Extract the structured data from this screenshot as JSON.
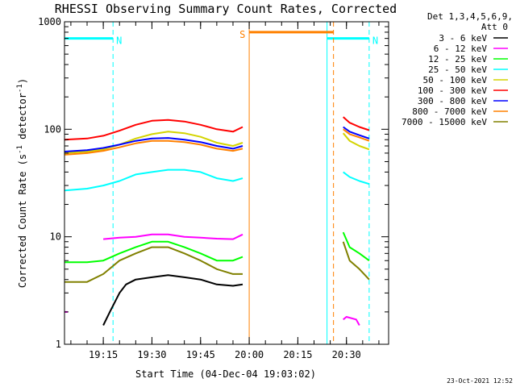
{
  "chart_data": {
    "type": "line",
    "title": "RHESSI Observing Summary Count Rates, Corrected",
    "xlabel": "Start Time (04-Dec-04 19:03:02)",
    "ylabel": "Corrected Count Rate (s",
    "ylabel_sup1": "-1",
    "ylabel_mid": " detector",
    "ylabel_sup2": "-1",
    "ylabel_end": ")",
    "yscale": "log",
    "ylim": [
      1,
      1000
    ],
    "xlim": [
      "19:03:02",
      "20:43:00"
    ],
    "x_ticks": [
      "19:15",
      "19:30",
      "19:45",
      "20:00",
      "20:15",
      "20:30"
    ],
    "y_ticks": [
      "1",
      "10",
      "100",
      "1000"
    ],
    "grid": false,
    "legend_header": [
      "Det 1,3,4,5,6,9,",
      "Att 0"
    ],
    "timestamp": "23-Oct-2021 12:52",
    "series": [
      {
        "name": "3 - 6 keV",
        "color": "#000000",
        "segments": [
          {
            "x": [
              "19:15:00",
              "19:17:00",
              "19:20:00",
              "19:22:00",
              "19:25:00",
              "19:30:00",
              "19:35:00",
              "19:40:00",
              "19:45:00",
              "19:50:00",
              "19:55:00",
              "19:58:00"
            ],
            "y": [
              1.5,
              2.0,
              3.0,
              3.6,
              4.0,
              4.2,
              4.4,
              4.2,
              4.0,
              3.6,
              3.5,
              3.6
            ]
          }
        ]
      },
      {
        "name": "6 - 12 keV",
        "color": "#ff00ff",
        "segments": [
          {
            "x": [
              "19:03:02",
              "19:04:00"
            ],
            "y": [
              2,
              2
            ]
          },
          {
            "x": [
              "19:15:00",
              "19:20:00",
              "19:25:00",
              "19:30:00",
              "19:35:00",
              "19:40:00",
              "19:45:00",
              "19:50:00",
              "19:55:00",
              "19:58:00"
            ],
            "y": [
              9.5,
              9.8,
              10.0,
              10.5,
              10.5,
              10.0,
              9.8,
              9.6,
              9.5,
              10.5
            ]
          },
          {
            "x": [
              "20:29:00",
              "20:30:00",
              "20:33:00",
              "20:34:00"
            ],
            "y": [
              1.7,
              1.8,
              1.7,
              1.5
            ]
          }
        ]
      },
      {
        "name": "12 - 25 keV",
        "color": "#00ff00",
        "segments": [
          {
            "x": [
              "19:03:02",
              "19:10:00",
              "19:15:00",
              "19:20:00",
              "19:25:00",
              "19:30:00",
              "19:35:00",
              "19:40:00",
              "19:45:00",
              "19:50:00",
              "19:55:00",
              "19:58:00"
            ],
            "y": [
              5.8,
              5.8,
              6.0,
              7.0,
              8.0,
              9.0,
              9.0,
              8.0,
              7.0,
              6.0,
              6.0,
              6.5
            ]
          },
          {
            "x": [
              "20:29:00",
              "20:31:00",
              "20:34:00",
              "20:37:00"
            ],
            "y": [
              11,
              8,
              7,
              6
            ]
          }
        ]
      },
      {
        "name": "25 - 50 keV",
        "color": "#00ffff",
        "segments": [
          {
            "x": [
              "19:03:02",
              "19:10:00",
              "19:15:00",
              "19:20:00",
              "19:25:00",
              "19:30:00",
              "19:35:00",
              "19:40:00",
              "19:45:00",
              "19:50:00",
              "19:55:00",
              "19:58:00"
            ],
            "y": [
              27,
              28,
              30,
              33,
              38,
              40,
              42,
              42,
              40,
              35,
              33,
              35
            ]
          },
          {
            "x": [
              "20:29:00",
              "20:31:00",
              "20:34:00",
              "20:37:00"
            ],
            "y": [
              40,
              36,
              33,
              31
            ]
          }
        ]
      },
      {
        "name": "50 - 100 keV",
        "color": "#d4d400",
        "segments": [
          {
            "x": [
              "19:03:02",
              "19:10:00",
              "19:15:00",
              "19:20:00",
              "19:25:00",
              "19:30:00",
              "19:35:00",
              "19:40:00",
              "19:45:00",
              "19:50:00",
              "19:55:00",
              "19:58:00"
            ],
            "y": [
              60,
              62,
              65,
              72,
              82,
              90,
              95,
              92,
              85,
              75,
              70,
              75
            ]
          },
          {
            "x": [
              "20:29:00",
              "20:31:00",
              "20:34:00",
              "20:37:00"
            ],
            "y": [
              92,
              78,
              70,
              65
            ]
          }
        ]
      },
      {
        "name": "100 - 300 keV",
        "color": "#ff0000",
        "segments": [
          {
            "x": [
              "19:03:02",
              "19:10:00",
              "19:15:00",
              "19:20:00",
              "19:25:00",
              "19:30:00",
              "19:35:00",
              "19:40:00",
              "19:45:00",
              "19:50:00",
              "19:55:00",
              "19:58:00"
            ],
            "y": [
              80,
              82,
              87,
              97,
              110,
              120,
              122,
              118,
              110,
              100,
              95,
              105
            ]
          },
          {
            "x": [
              "20:29:00",
              "20:31:00",
              "20:34:00",
              "20:37:00"
            ],
            "y": [
              130,
              115,
              105,
              98
            ]
          }
        ]
      },
      {
        "name": "300 - 800 keV",
        "color": "#0000ff",
        "segments": [
          {
            "x": [
              "19:03:02",
              "19:10:00",
              "19:15:00",
              "19:20:00",
              "19:25:00",
              "19:30:00",
              "19:35:00",
              "19:40:00",
              "19:45:00",
              "19:50:00",
              "19:55:00",
              "19:58:00"
            ],
            "y": [
              62,
              64,
              67,
              72,
              78,
              82,
              83,
              80,
              76,
              70,
              66,
              70
            ]
          },
          {
            "x": [
              "20:29:00",
              "20:31:00",
              "20:34:00",
              "20:37:00"
            ],
            "y": [
              105,
              95,
              88,
              82
            ]
          }
        ]
      },
      {
        "name": "800 - 7000 keV",
        "color": "#ff8000",
        "segments": [
          {
            "x": [
              "19:03:02",
              "19:10:00",
              "19:15:00",
              "19:20:00",
              "19:25:00",
              "19:30:00",
              "19:35:00",
              "19:40:00",
              "19:45:00",
              "19:50:00",
              "19:55:00",
              "19:58:00"
            ],
            "y": [
              58,
              60,
              63,
              68,
              74,
              78,
              78,
              76,
              72,
              66,
              63,
              66
            ]
          },
          {
            "x": [
              "20:29:00",
              "20:31:00",
              "20:34:00",
              "20:37:00"
            ],
            "y": [
              100,
              90,
              84,
              78
            ]
          }
        ]
      },
      {
        "name": "7000 - 15000 keV",
        "color": "#808000",
        "segments": [
          {
            "x": [
              "19:03:02",
              "19:10:00",
              "19:15:00",
              "19:20:00",
              "19:25:00",
              "19:30:00",
              "19:35:00",
              "19:40:00",
              "19:45:00",
              "19:50:00",
              "19:55:00",
              "19:58:00"
            ],
            "y": [
              3.8,
              3.8,
              4.5,
              6.0,
              7.0,
              8.0,
              8.0,
              7.0,
              6.0,
              5.0,
              4.5,
              4.5
            ]
          },
          {
            "x": [
              "20:29:00",
              "20:31:00",
              "20:34:00",
              "20:37:00"
            ],
            "y": [
              9,
              6,
              5,
              4
            ]
          }
        ]
      }
    ],
    "annotations": [
      {
        "label": "N",
        "kind": "night",
        "color": "#00ffff",
        "y": 700,
        "intervals": [
          [
            "19:03:02",
            "19:18:00"
          ],
          [
            "20:24:00",
            "20:37:00"
          ]
        ]
      },
      {
        "label": "S",
        "kind": "saa",
        "color": "#ff8000",
        "y": 800,
        "intervals": [
          [
            "20:00:00",
            "20:26:00"
          ]
        ]
      }
    ]
  }
}
